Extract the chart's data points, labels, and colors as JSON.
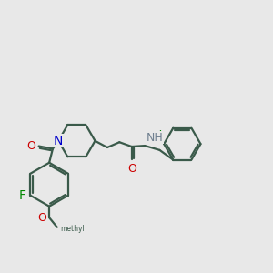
{
  "bg_color": "#E8E8E8",
  "bond_color": "#3A5A4A",
  "N_color": "#0000CC",
  "O_color": "#CC0000",
  "F_color": "#008800",
  "Cl_color": "#008800",
  "NH_color": "#708090",
  "line_width": 1.6,
  "font_size": 9,
  "figsize": [
    3.0,
    3.0
  ],
  "dpi": 100,
  "xlim": [
    -3.0,
    3.2
  ],
  "ylim": [
    -2.8,
    2.0
  ]
}
